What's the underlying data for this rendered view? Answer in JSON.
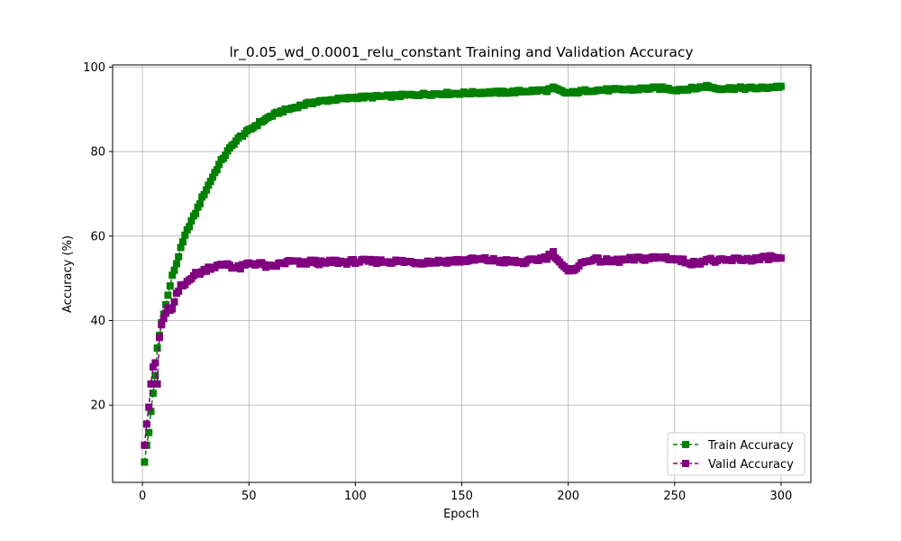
{
  "chart_data": {
    "type": "line",
    "title": "lr_0.05_wd_0.0001_relu_constant Training and Validation Accuracy",
    "xlabel": "Epoch",
    "ylabel": "Accuracy (%)",
    "xlim": [
      -14,
      314
    ],
    "ylim": [
      1.7,
      100.5
    ],
    "xticks": [
      0,
      50,
      100,
      150,
      200,
      250,
      300
    ],
    "yticks": [
      20,
      40,
      60,
      80,
      100
    ],
    "grid": true,
    "legend_position": "lower-right",
    "marker": "square",
    "line_style": "dashed",
    "x_keys": [
      1,
      2,
      3,
      4,
      5,
      6,
      7,
      8,
      9,
      10,
      12,
      14,
      16,
      18,
      20,
      22,
      25,
      28,
      31,
      34,
      37,
      40,
      43,
      46,
      50,
      55,
      60,
      65,
      70,
      75,
      80,
      85,
      90,
      95,
      100,
      110,
      120,
      130,
      140,
      150,
      160,
      170,
      180,
      190,
      193,
      198,
      200,
      210,
      220,
      230,
      240,
      245,
      250,
      255,
      260,
      265,
      270,
      280,
      290,
      295,
      300
    ],
    "series": [
      {
        "name": "Train Accuracy",
        "color": "#008000",
        "values": [
          6.5,
          10.5,
          13.5,
          18.5,
          22.8,
          27.0,
          33.5,
          36.5,
          39.5,
          41.5,
          46.0,
          50.5,
          53.5,
          57.0,
          60.0,
          62.5,
          65.5,
          69.0,
          72.0,
          75.0,
          77.8,
          80.0,
          82.0,
          83.5,
          85.0,
          86.8,
          88.3,
          89.5,
          90.2,
          91.0,
          91.6,
          92.0,
          92.3,
          92.5,
          92.8,
          93.0,
          93.2,
          93.5,
          93.7,
          93.8,
          94.0,
          94.0,
          94.3,
          94.5,
          95.0,
          94.0,
          93.8,
          94.5,
          94.6,
          94.7,
          95.0,
          95.0,
          94.6,
          94.8,
          95.0,
          95.5,
          94.9,
          95.0,
          95.0,
          95.2,
          95.4
        ]
      },
      {
        "name": "Valid Accuracy",
        "color": "#800080",
        "values": [
          10.5,
          15.5,
          19.5,
          25.0,
          29.0,
          30.0,
          25.0,
          36.0,
          39.0,
          40.5,
          43.0,
          42.5,
          46.0,
          48.0,
          48.5,
          50.0,
          51.0,
          51.5,
          52.5,
          52.8,
          53.0,
          53.5,
          52.5,
          52.5,
          53.5,
          53.5,
          52.5,
          53.5,
          54.0,
          53.5,
          54.0,
          53.5,
          54.0,
          53.8,
          54.0,
          54.0,
          54.0,
          53.8,
          54.0,
          54.2,
          54.5,
          54.0,
          53.8,
          55.0,
          56.0,
          52.5,
          51.5,
          54.5,
          54.0,
          54.5,
          54.8,
          55.0,
          54.5,
          54.0,
          53.5,
          54.5,
          54.0,
          54.5,
          54.5,
          55.0,
          54.5
        ]
      }
    ]
  }
}
